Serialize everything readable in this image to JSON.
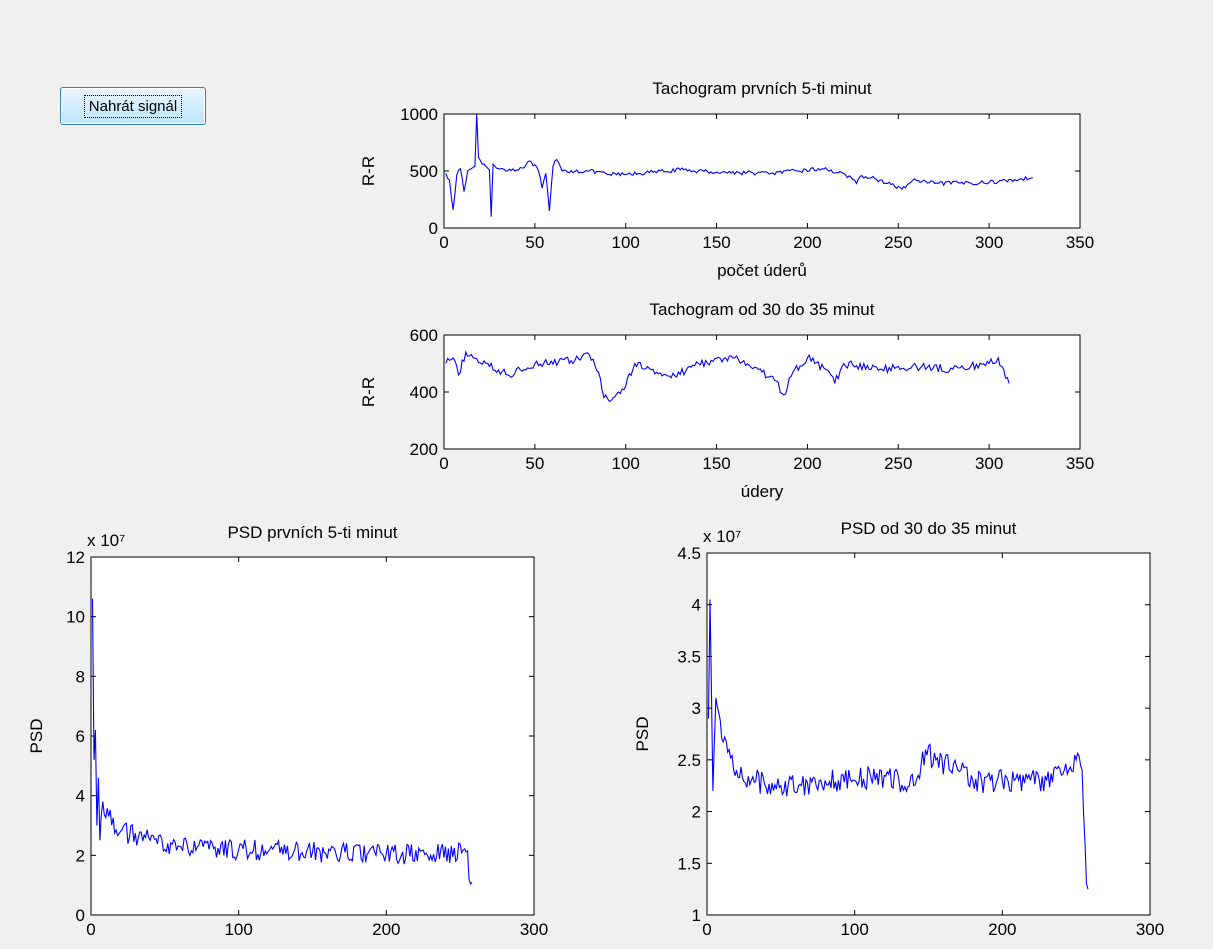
{
  "button": {
    "label": "Nahrát signál"
  },
  "chart_data": [
    {
      "id": "tach1",
      "type": "line",
      "title": "Tachogram prvních 5-ti minut",
      "xlabel": "počet úderů",
      "ylabel": "R-R",
      "xlim": [
        0,
        350
      ],
      "ylim": [
        0,
        1000
      ],
      "xticks": [
        0,
        50,
        100,
        150,
        200,
        250,
        300,
        350
      ],
      "yticks": [
        0,
        500,
        1000
      ],
      "series_color": "#0000ff",
      "x_range": [
        1,
        324
      ],
      "keypoints": [
        [
          1,
          480
        ],
        [
          3,
          420
        ],
        [
          5,
          160
        ],
        [
          7,
          460
        ],
        [
          9,
          520
        ],
        [
          11,
          320
        ],
        [
          13,
          500
        ],
        [
          15,
          520
        ],
        [
          17,
          540
        ],
        [
          18,
          1000
        ],
        [
          19,
          620
        ],
        [
          21,
          560
        ],
        [
          23,
          540
        ],
        [
          25,
          510
        ],
        [
          26,
          100
        ],
        [
          27,
          560
        ],
        [
          30,
          520
        ],
        [
          40,
          510
        ],
        [
          48,
          580
        ],
        [
          52,
          500
        ],
        [
          54,
          350
        ],
        [
          56,
          480
        ],
        [
          58,
          150
        ],
        [
          60,
          540
        ],
        [
          62,
          600
        ],
        [
          65,
          500
        ],
        [
          80,
          500
        ],
        [
          90,
          470
        ],
        [
          100,
          470
        ],
        [
          130,
          510
        ],
        [
          150,
          490
        ],
        [
          180,
          480
        ],
        [
          208,
          520
        ],
        [
          220,
          480
        ],
        [
          227,
          390
        ],
        [
          230,
          460
        ],
        [
          240,
          420
        ],
        [
          252,
          340
        ],
        [
          258,
          420
        ],
        [
          270,
          390
        ],
        [
          300,
          400
        ],
        [
          324,
          440
        ]
      ]
    },
    {
      "id": "tach2",
      "type": "line",
      "title": "Tachogram od 30  do 35 minut",
      "xlabel": "údery",
      "ylabel": "R-R",
      "xlim": [
        0,
        350
      ],
      "ylim": [
        200,
        600
      ],
      "xticks": [
        0,
        50,
        100,
        150,
        200,
        250,
        300,
        350
      ],
      "yticks": [
        200,
        400,
        600
      ],
      "series_color": "#0000ff",
      "x_range": [
        1,
        311
      ],
      "keypoints": [
        [
          1,
          500
        ],
        [
          5,
          520
        ],
        [
          8,
          460
        ],
        [
          12,
          540
        ],
        [
          16,
          520
        ],
        [
          25,
          490
        ],
        [
          35,
          460
        ],
        [
          50,
          500
        ],
        [
          70,
          510
        ],
        [
          80,
          530
        ],
        [
          85,
          470
        ],
        [
          88,
          380
        ],
        [
          92,
          370
        ],
        [
          96,
          400
        ],
        [
          100,
          420
        ],
        [
          105,
          500
        ],
        [
          115,
          480
        ],
        [
          125,
          450
        ],
        [
          140,
          500
        ],
        [
          160,
          520
        ],
        [
          175,
          470
        ],
        [
          182,
          440
        ],
        [
          187,
          390
        ],
        [
          192,
          470
        ],
        [
          200,
          520
        ],
        [
          210,
          480
        ],
        [
          215,
          430
        ],
        [
          220,
          500
        ],
        [
          240,
          480
        ],
        [
          260,
          490
        ],
        [
          280,
          480
        ],
        [
          300,
          500
        ],
        [
          305,
          520
        ],
        [
          311,
          430
        ]
      ]
    },
    {
      "id": "psd1",
      "type": "line",
      "title": "PSD prvních 5-ti minut",
      "xlabel": "",
      "ylabel": "PSD",
      "multiplier": "x 10⁷",
      "xlim": [
        0,
        300
      ],
      "ylim": [
        0,
        12
      ],
      "xticks": [
        0,
        100,
        200,
        300
      ],
      "yticks": [
        0,
        2,
        4,
        6,
        8,
        10,
        12
      ],
      "series_color": "#0000ff",
      "x_range": [
        1,
        258
      ],
      "keypoints": [
        [
          1,
          10.6
        ],
        [
          2,
          5.2
        ],
        [
          3,
          6.2
        ],
        [
          4,
          3.0
        ],
        [
          5,
          4.6
        ],
        [
          6,
          2.5
        ],
        [
          8,
          3.8
        ],
        [
          12,
          3.3
        ],
        [
          20,
          2.8
        ],
        [
          40,
          2.5
        ],
        [
          60,
          2.3
        ],
        [
          80,
          2.2
        ],
        [
          100,
          2.2
        ],
        [
          150,
          2.1
        ],
        [
          200,
          2.05
        ],
        [
          230,
          2.0
        ],
        [
          255,
          2.15
        ],
        [
          256,
          1.2
        ],
        [
          258,
          1.1
        ]
      ]
    },
    {
      "id": "psd2",
      "type": "line",
      "title": "PSD od 30  do 35 minut",
      "xlabel": "",
      "ylabel": "PSD",
      "multiplier": "x 10⁷",
      "xlim": [
        0,
        300
      ],
      "ylim": [
        1,
        4.5
      ],
      "xticks": [
        0,
        100,
        200,
        300
      ],
      "yticks": [
        1,
        1.5,
        2,
        2.5,
        3,
        3.5,
        4,
        4.5
      ],
      "series_color": "#0000ff",
      "x_range": [
        1,
        258
      ],
      "keypoints": [
        [
          1,
          2.9
        ],
        [
          2,
          4.05
        ],
        [
          3,
          3.2
        ],
        [
          4,
          2.2
        ],
        [
          6,
          3.1
        ],
        [
          10,
          2.7
        ],
        [
          15,
          2.6
        ],
        [
          20,
          2.4
        ],
        [
          30,
          2.3
        ],
        [
          50,
          2.25
        ],
        [
          80,
          2.3
        ],
        [
          100,
          2.3
        ],
        [
          120,
          2.35
        ],
        [
          130,
          2.3
        ],
        [
          140,
          2.25
        ],
        [
          145,
          2.45
        ],
        [
          148,
          2.6
        ],
        [
          155,
          2.5
        ],
        [
          170,
          2.4
        ],
        [
          180,
          2.3
        ],
        [
          200,
          2.3
        ],
        [
          230,
          2.3
        ],
        [
          245,
          2.4
        ],
        [
          250,
          2.5
        ],
        [
          254,
          2.4
        ],
        [
          256,
          1.7
        ],
        [
          257,
          1.3
        ],
        [
          258,
          1.25
        ]
      ]
    }
  ]
}
